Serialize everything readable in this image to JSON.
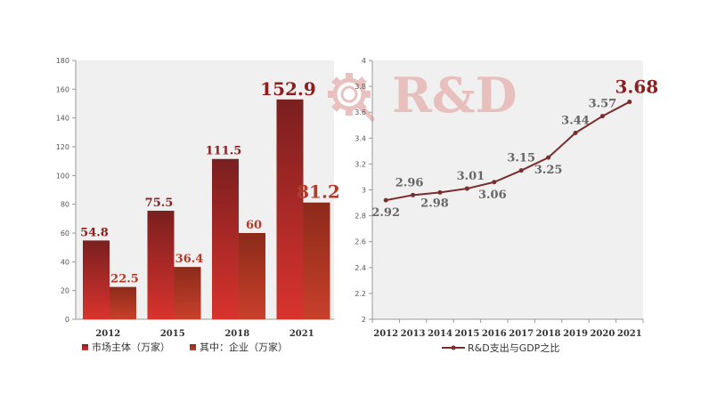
{
  "watermark": {
    "text": "R&D",
    "icon": "gear-magnifier-icon",
    "color": "#e6b7b4"
  },
  "colors": {
    "bar_primary_top": "#7a1f1f",
    "bar_primary_bottom": "#d9332e",
    "bar_secondary_top": "#8c2a1a",
    "bar_secondary_bottom": "#c8402a",
    "label_primary": "#8b1e1e",
    "label_secondary": "#b23a2a",
    "line": "#7b2d2d",
    "line_label": "#666666",
    "plot_bg": "#f0f0f0"
  },
  "chart_data": [
    {
      "type": "bar",
      "categories": [
        "2012",
        "2015",
        "2018",
        "2021"
      ],
      "series": [
        {
          "name": "市场主体（万家）",
          "values": [
            54.8,
            75.5,
            111.5,
            152.9
          ],
          "labels": [
            "54.8",
            "75.5",
            "111.5",
            "152.9"
          ]
        },
        {
          "name": "其中：企业（万家）",
          "values": [
            22.5,
            36.4,
            60,
            81.2
          ],
          "labels": [
            "22.5",
            "36.4",
            "60",
            "81.2"
          ]
        }
      ],
      "ylim": [
        0,
        180
      ],
      "yticks": [
        0,
        20,
        40,
        60,
        80,
        100,
        120,
        140,
        160,
        180
      ],
      "grid": false,
      "legend": "bottom-left"
    },
    {
      "type": "line",
      "x": [
        "2012",
        "2013",
        "2014",
        "2015",
        "2016",
        "2017",
        "2018",
        "2019",
        "2020",
        "2021"
      ],
      "series": [
        {
          "name": "R&D支出与GDP之比",
          "values": [
            2.92,
            2.96,
            2.98,
            3.01,
            3.06,
            3.15,
            3.25,
            3.44,
            3.57,
            3.68
          ],
          "labels": [
            "2.92",
            "2.96",
            "2.98",
            "3.01",
            "3.06",
            "3.15",
            "3.25",
            "3.44",
            "3.57",
            "3.68"
          ]
        }
      ],
      "ylim": [
        2,
        4
      ],
      "yticks": [
        "2",
        "2.2",
        "2.4",
        "2.6",
        "2.8",
        "3",
        "3.2",
        "3.4",
        "3.6",
        "3.8",
        "4"
      ],
      "grid": false,
      "legend": "bottom-center"
    }
  ]
}
